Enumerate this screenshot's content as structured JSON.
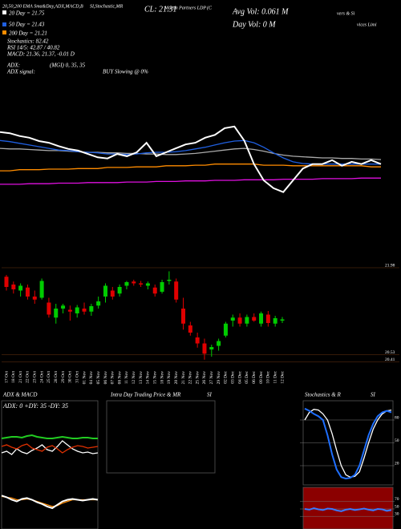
{
  "header": {
    "fragments": [
      "20,50,200 EMA Sma&Day,ADX,MACD,B",
      "SI,Stochastic,MR",
      "Martin Partners LDP",
      "(C",
      "vers & Si",
      "vices Limi"
    ],
    "close": "CL: 21.31",
    "avg_vol": "Avg Vol: 0.061 M",
    "day_vol": "Day Vol: 0  M",
    "legend": [
      "20 Day = 21.75",
      "50 Day = 21.43",
      "200 Day = 21.21"
    ],
    "stats": [
      "Stochastics: 82.42",
      "RSI 14/5: 42.87 / 40.82",
      "MACD: 21.36, 21.37, -0.01 D"
    ],
    "adx": "ADX:",
    "adx_signal": "ADX  signal:",
    "mgi": "(MGI) 0, 35, 35",
    "signal": "BUY Slowing @ 0%"
  },
  "chart_data": [
    {
      "type": "line",
      "ylim": [
        20.5,
        22.5
      ],
      "series": [
        {
          "color": "#aaaaaa",
          "values": [
            21.57,
            21.56,
            21.56,
            21.55,
            21.54,
            21.53,
            21.53,
            21.52,
            21.51,
            21.5,
            21.5,
            21.49,
            21.49,
            21.48,
            21.48,
            21.47,
            21.47,
            21.46,
            21.46,
            21.47,
            21.48,
            21.5,
            21.52,
            21.54,
            21.56,
            21.57,
            21.55,
            21.52,
            21.48,
            21.45,
            21.43,
            21.42,
            21.41,
            21.4,
            21.4,
            21.39,
            21.39,
            21.38,
            21.38,
            21.37
          ]
        },
        {
          "color": "#e010e0",
          "values": [
            20.93,
            20.93,
            20.93,
            20.94,
            20.94,
            20.94,
            20.95,
            20.95,
            20.95,
            20.96,
            20.96,
            20.96,
            20.96,
            20.97,
            20.97,
            20.97,
            20.98,
            20.98,
            20.98,
            20.99,
            20.99,
            20.99,
            21.0,
            21.0,
            21.0,
            21.01,
            21.01,
            21.01,
            21.01,
            21.02,
            21.02,
            21.02,
            21.02,
            21.03,
            21.03,
            21.03,
            21.03,
            21.04,
            21.04,
            21.04
          ]
        },
        {
          "color": "#ff8c00",
          "values": [
            21.17,
            21.17,
            21.19,
            21.19,
            21.19,
            21.2,
            21.2,
            21.2,
            21.21,
            21.21,
            21.21,
            21.23,
            21.23,
            21.23,
            21.24,
            21.24,
            21.24,
            21.26,
            21.26,
            21.26,
            21.27,
            21.27,
            21.29,
            21.29,
            21.29,
            21.29,
            21.29,
            21.27,
            21.27,
            21.27,
            21.26,
            21.26,
            21.26,
            21.26,
            21.26,
            21.26,
            21.26,
            21.26,
            21.24,
            21.24
          ]
        },
        {
          "color": "#1f5fe0",
          "values": [
            21.71,
            21.69,
            21.66,
            21.63,
            21.6,
            21.57,
            21.54,
            21.53,
            21.51,
            21.5,
            21.49,
            21.47,
            21.47,
            21.46,
            21.47,
            21.49,
            21.5,
            21.5,
            21.51,
            21.53,
            21.56,
            21.59,
            21.63,
            21.67,
            21.7,
            21.71,
            21.67,
            21.59,
            21.49,
            21.4,
            21.33,
            21.3,
            21.29,
            21.29,
            21.29,
            21.29,
            21.29,
            21.29,
            21.29,
            21.29
          ]
        },
        {
          "color": "#ffffff",
          "values": [
            21.86,
            21.84,
            21.79,
            21.76,
            21.7,
            21.67,
            21.61,
            21.56,
            21.53,
            21.47,
            21.41,
            21.39,
            21.47,
            21.43,
            21.5,
            21.67,
            21.43,
            21.5,
            21.57,
            21.64,
            21.67,
            21.76,
            21.81,
            21.93,
            21.96,
            21.71,
            21.29,
            21.0,
            20.86,
            20.79,
            21.0,
            21.21,
            21.29,
            21.29,
            21.36,
            21.26,
            21.33,
            21.29,
            21.36,
            21.29
          ]
        }
      ]
    },
    {
      "type": "candlestick",
      "up_color": "#00cc00",
      "down_color": "#e00000",
      "categories": [
        "17 Oct",
        "18 Oct",
        "21 Oct",
        "22 Oct",
        "23 Oct",
        "24 Oct",
        "25 Oct",
        "28 Oct",
        "29 Oct",
        "30 Oct",
        "31 Oct",
        "01 Nov",
        "04 Nov",
        "05 Nov",
        "06 Nov",
        "07 Nov",
        "08 Nov",
        "11 Nov",
        "12 Nov",
        "13 Nov",
        "14 Nov",
        "15 Nov",
        "18 Nov",
        "19 Nov",
        "20 Nov",
        "21 Nov",
        "22 Nov",
        "25 Nov",
        "26 Nov",
        "27 Nov",
        "29 Nov",
        "02 Dec",
        "03 Dec",
        "04 Dec",
        "05 Dec",
        "06 Dec",
        "09 Dec",
        "10 Dec",
        "11 Dec",
        "12 Dec"
      ],
      "open": [
        21.83,
        21.7,
        21.6,
        21.65,
        21.5,
        21.48,
        21.4,
        21.15,
        21.3,
        21.28,
        21.22,
        21.3,
        21.25,
        21.35,
        21.5,
        21.6,
        21.55,
        21.68,
        21.75,
        21.72,
        21.68,
        21.65,
        21.58,
        21.76,
        21.75,
        21.3,
        21.02,
        20.82,
        20.72,
        20.62,
        20.68,
        20.85,
        21.1,
        21.15,
        21.05,
        21.16,
        21.05,
        21.2,
        21.05,
        21.1
      ],
      "high": [
        21.86,
        21.75,
        21.72,
        21.7,
        21.6,
        21.8,
        21.48,
        21.38,
        21.38,
        21.35,
        21.36,
        21.4,
        21.38,
        21.5,
        21.72,
        21.66,
        21.7,
        21.76,
        21.78,
        21.76,
        21.75,
        21.7,
        21.78,
        21.92,
        21.8,
        21.48,
        21.08,
        20.9,
        20.8,
        20.7,
        20.8,
        21.08,
        21.2,
        21.22,
        21.2,
        21.22,
        21.25,
        21.26,
        21.18,
        21.16
      ],
      "low": [
        21.6,
        21.55,
        21.5,
        21.45,
        21.38,
        21.45,
        21.15,
        21.05,
        21.22,
        21.1,
        21.15,
        21.2,
        21.18,
        21.3,
        21.4,
        21.45,
        21.5,
        21.62,
        21.68,
        21.66,
        21.62,
        21.5,
        21.55,
        21.7,
        21.4,
        20.95,
        20.85,
        20.65,
        20.45,
        20.5,
        20.6,
        20.82,
        21.0,
        21.0,
        21.0,
        21.08,
        21.0,
        21.0,
        21.0,
        21.06
      ],
      "close": [
        21.66,
        21.62,
        21.68,
        21.5,
        21.45,
        21.76,
        21.2,
        21.3,
        21.35,
        21.25,
        21.32,
        21.25,
        21.34,
        21.42,
        21.68,
        21.5,
        21.66,
        21.74,
        21.72,
        21.7,
        21.72,
        21.55,
        21.74,
        21.78,
        21.45,
        21.05,
        20.9,
        20.72,
        20.55,
        20.66,
        20.76,
        21.05,
        21.15,
        21.05,
        21.16,
        21.1,
        21.22,
        21.06,
        21.14,
        21.12
      ],
      "ylim": [
        20.3,
        22.1
      ],
      "yticks": [
        21.98,
        20.53,
        20.41
      ],
      "grid_color": "#6b3510"
    },
    {
      "type": "line",
      "title": "ADX  & MACD",
      "subtitle": "ADX: 0  +DY: 35  -DY: 35",
      "ylim": [
        0,
        60
      ],
      "series": [
        {
          "color": "#ffffff",
          "values": [
            20,
            22,
            18,
            25,
            21,
            19,
            23,
            26,
            30,
            24,
            22,
            28,
            35,
            30,
            25,
            22,
            20,
            21,
            19,
            20
          ]
        },
        {
          "color": "#e03000",
          "values": [
            28,
            30,
            27,
            25,
            29,
            31,
            26,
            24,
            22,
            27,
            29,
            25,
            20,
            24,
            27,
            29,
            28,
            26,
            27,
            28
          ]
        },
        {
          "color": "#22cc22",
          "values": [
            38,
            39,
            40,
            40,
            39,
            41,
            42,
            40,
            39,
            38,
            38,
            39,
            40,
            39,
            38,
            38,
            39,
            39,
            38,
            38
          ]
        }
      ]
    },
    {
      "type": "line",
      "ylim": [
        -0.3,
        0.3
      ],
      "series": [
        {
          "color": "#ff8c00",
          "values": [
            0.04,
            0.03,
            0.02,
            0.0,
            0.0,
            0.01,
            0.0,
            -0.02,
            -0.04,
            -0.06,
            -0.08,
            -0.07,
            -0.04,
            -0.02,
            0.0,
            0.0,
            0.0,
            0.0,
            0.0,
            0.0
          ]
        },
        {
          "color": "#ffffff",
          "values": [
            0.05,
            0.03,
            0.0,
            -0.02,
            0.01,
            0.02,
            0.0,
            -0.03,
            -0.05,
            -0.08,
            -0.1,
            -0.06,
            -0.02,
            0.0,
            0.01,
            0.0,
            -0.01,
            0.0,
            0.01,
            0.0
          ]
        }
      ]
    },
    {
      "type": "line",
      "title": "Intra Day Trading Price  & MR",
      "subtitle": "SI",
      "ylim": [
        0,
        1
      ],
      "series": []
    },
    {
      "type": "line",
      "title": "Stochastics & R",
      "subtitle": "SI",
      "ylim": [
        0,
        100
      ],
      "yticks": [
        20,
        50,
        80
      ],
      "series": [
        {
          "color": "#ffffff",
          "values": [
            80,
            90,
            94,
            93,
            88,
            80,
            62,
            40,
            20,
            8,
            5,
            6,
            12,
            30,
            50,
            68,
            80,
            88,
            92,
            93
          ]
        },
        {
          "color": "#1f6fff",
          "values": [
            95,
            92,
            88,
            85,
            80,
            60,
            35,
            15,
            5,
            3,
            4,
            8,
            20,
            40,
            60,
            75,
            85,
            90,
            92,
            90
          ]
        }
      ]
    },
    {
      "type": "line",
      "ylim": [
        0,
        100
      ],
      "yticks": [
        30,
        50,
        70
      ],
      "background": "#8b0000",
      "series": [
        {
          "color": "#3a7aff",
          "values": [
            50,
            48,
            52,
            49,
            47,
            51,
            50,
            46,
            44,
            48,
            50,
            47,
            49,
            51,
            48,
            46,
            50,
            49,
            45,
            47
          ]
        }
      ]
    }
  ]
}
